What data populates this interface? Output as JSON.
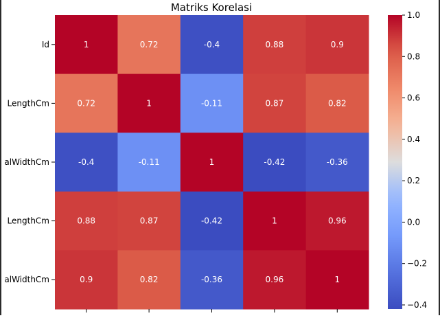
{
  "chart_data": {
    "type": "heatmap",
    "title": "Matriks Korelasi",
    "row_labels": [
      "Id",
      "LengthCm",
      "alWidthCm",
      "LengthCm",
      "alWidthCm"
    ],
    "col_labels": [
      "",
      "",
      "",
      "",
      ""
    ],
    "matrix": [
      [
        1,
        0.72,
        -0.4,
        0.88,
        0.9
      ],
      [
        0.72,
        1,
        -0.11,
        0.87,
        0.82
      ],
      [
        -0.4,
        -0.11,
        1,
        -0.42,
        -0.36
      ],
      [
        0.88,
        0.87,
        -0.42,
        1,
        0.96
      ],
      [
        0.9,
        0.82,
        -0.36,
        0.96,
        1
      ]
    ],
    "cell_labels": [
      [
        "1",
        "0.72",
        "-0.4",
        "0.88",
        "0.9"
      ],
      [
        "0.72",
        "1",
        "-0.11",
        "0.87",
        "0.82"
      ],
      [
        "-0.4",
        "-0.11",
        "1",
        "-0.42",
        "-0.36"
      ],
      [
        "0.88",
        "0.87",
        "-0.42",
        "1",
        "0.96"
      ],
      [
        "0.9",
        "0.82",
        "-0.36",
        "0.96",
        "1"
      ]
    ],
    "colormap": "coolwarm",
    "vmin": -0.42,
    "vmax": 1.0,
    "colorbar_ticks": [
      1.0,
      0.8,
      0.6,
      0.4,
      0.2,
      0.0,
      -0.2,
      -0.4
    ],
    "colorbar_tick_labels": [
      "1.0",
      "0.8",
      "0.6",
      "0.4",
      "0.2",
      "0.0",
      "−0.2",
      "−0.4"
    ]
  }
}
